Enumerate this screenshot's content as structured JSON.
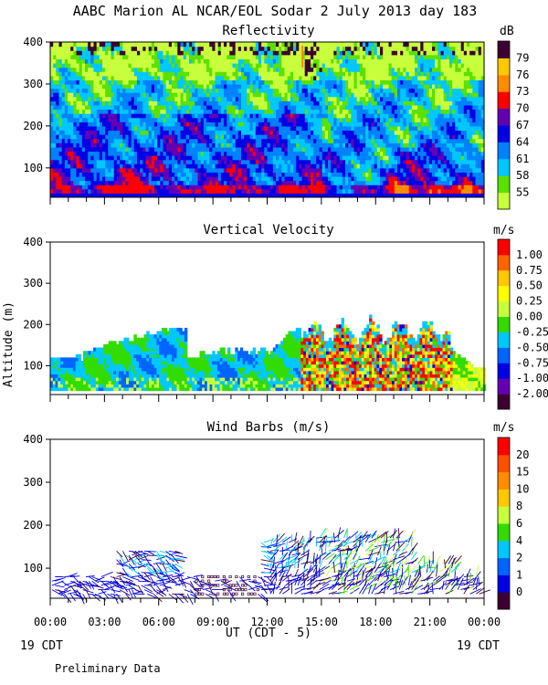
{
  "header": {
    "title": "AABC Marion AL NCAR/EOL Sodar    2 July 2013 day 183"
  },
  "footer": {
    "xlabel": "UT  (CDT - 5)",
    "left_date": "19 CDT",
    "right_date": "19 CDT",
    "note": "Preliminary Data"
  },
  "chart_data": [
    {
      "type": "heatmap",
      "title": "Reflectivity",
      "ylabel": "",
      "ylim": [
        30,
        400
      ],
      "yticks": [
        "100",
        "200",
        "300",
        "400"
      ],
      "xlim": [
        0,
        24
      ],
      "xticks": [
        "00:00",
        "03:00",
        "06:00",
        "09:00",
        "12:00",
        "15:00",
        "18:00",
        "21:00",
        "00:00"
      ],
      "colorbar": {
        "unit": "dB",
        "labels": [
          "55",
          "58",
          "61",
          "64",
          "67",
          "70",
          "73",
          "76",
          "79"
        ],
        "colors": [
          "#c8ff3c",
          "#5ae100",
          "#00c8ff",
          "#0082ff",
          "#0000e6",
          "#6400b4",
          "#ff0000",
          "#ff8c00",
          "#ffc800",
          "#3c0032"
        ]
      }
    },
    {
      "type": "heatmap",
      "title": "Vertical Velocity",
      "ylabel": "Altitude (m)",
      "ylim": [
        30,
        400
      ],
      "yticks": [
        "100",
        "200",
        "300",
        "400"
      ],
      "xlim": [
        0,
        24
      ],
      "colorbar": {
        "unit": "m/s",
        "labels": [
          "-2.00",
          "-1.00",
          "-0.75",
          "-0.50",
          "-0.25",
          "0.00",
          "0.25",
          "0.50",
          "0.75",
          "1.00"
        ],
        "colors": [
          "#3c0032",
          "#6400b4",
          "#0000e6",
          "#0064ff",
          "#00c8ff",
          "#32dc00",
          "#c8ff3c",
          "#ffff00",
          "#ffc800",
          "#ff6400",
          "#ff0000"
        ]
      }
    },
    {
      "type": "scatter",
      "title": "Wind Barbs (m/s)",
      "ylabel": "",
      "ylim": [
        30,
        400
      ],
      "yticks": [
        "100",
        "200",
        "300",
        "400"
      ],
      "xlim": [
        0,
        24
      ],
      "colorbar": {
        "unit": "m/s",
        "labels": [
          "0",
          "1",
          "2",
          "4",
          "6",
          "8",
          "10",
          "15",
          "20"
        ],
        "colors": [
          "#3c0032",
          "#0000e6",
          "#0064ff",
          "#00c8ff",
          "#32dc00",
          "#c8ff3c",
          "#ffc800",
          "#ff8c00",
          "#ff5000",
          "#ff0000"
        ]
      }
    }
  ]
}
